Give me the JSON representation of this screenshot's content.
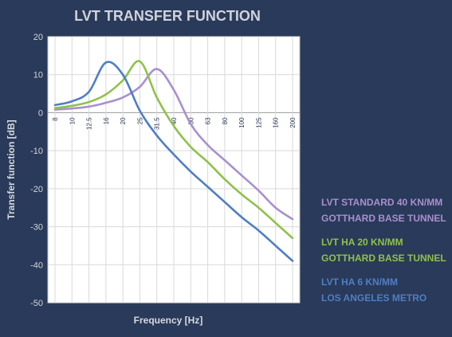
{
  "chart_data": {
    "type": "line",
    "title": "LVT TRANSFER FUNCTION",
    "xlabel": "Frequency [Hz]",
    "ylabel": "Transfer function [dB]",
    "x_ticks": [
      "8",
      "10",
      "12.5",
      "16",
      "20",
      "25",
      "31.5",
      "40",
      "50",
      "63",
      "80",
      "100",
      "125",
      "160",
      "200"
    ],
    "y_ticks": [
      20,
      10,
      0,
      -10,
      -20,
      -30,
      -40,
      -50
    ],
    "ylim": [
      -50,
      20
    ],
    "grid": true,
    "legend_position": "right",
    "series": [
      {
        "name_line1": "LVT STANDARD 40 KN/MM",
        "name_line2": "GOTTHARD BASE TUNNEL",
        "color": "#a98fd0",
        "x": [
          "8",
          "10",
          "12.5",
          "16",
          "20",
          "25",
          "31.5",
          "40",
          "50",
          "63",
          "80",
          "100",
          "125",
          "160",
          "200"
        ],
        "y": [
          0.8,
          1.1,
          1.6,
          2.6,
          4.0,
          6.8,
          11.5,
          6.0,
          -3.0,
          -8.5,
          -12.5,
          -16.5,
          -20.5,
          -25.0,
          -28.0
        ]
      },
      {
        "name_line1": "LVT HA 20 KN/MM",
        "name_line2": "GOTTHARD BASE TUNNEL",
        "color": "#8fc24a",
        "x": [
          "8",
          "10",
          "12.5",
          "16",
          "20",
          "25",
          "31.5",
          "40",
          "50",
          "63",
          "80",
          "100",
          "125",
          "160",
          "200"
        ],
        "y": [
          1.2,
          1.8,
          2.8,
          4.8,
          8.5,
          13.5,
          4.0,
          -3.5,
          -9.0,
          -13.0,
          -17.5,
          -21.5,
          -25.0,
          -29.0,
          -33.0
        ]
      },
      {
        "name_line1": "LVT HA 6 KN/MM",
        "name_line2": "LOS ANGELES METRO",
        "color": "#4f7ec4",
        "x": [
          "8",
          "10",
          "12.5",
          "16",
          "20",
          "25",
          "31.5",
          "40",
          "50",
          "63",
          "80",
          "100",
          "125",
          "160",
          "200"
        ],
        "y": [
          2.0,
          3.0,
          5.5,
          13.2,
          10.0,
          0.5,
          -6.0,
          -11.0,
          -15.5,
          -19.5,
          -23.5,
          -27.5,
          -31.0,
          -35.0,
          -39.0
        ]
      }
    ]
  }
}
